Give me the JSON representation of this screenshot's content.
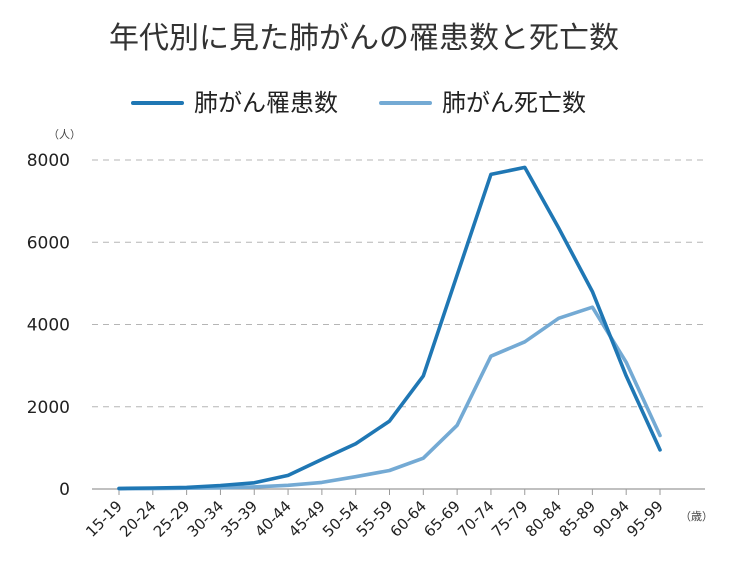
{
  "chart_data": {
    "type": "line",
    "title": "年代別に見た肺がんの罹患数と死亡数",
    "y_unit": "（人）",
    "x_unit": "（歳）",
    "categories": [
      "15-19",
      "20-24",
      "25-29",
      "30-34",
      "35-39",
      "40-44",
      "45-49",
      "50-54",
      "55-59",
      "60-64",
      "65-69",
      "70-74",
      "75-79",
      "80-84",
      "85-89",
      "90-94",
      "95-99"
    ],
    "series": [
      {
        "name": "肺がん罹患数",
        "color": "#1f77b4",
        "values": [
          15,
          25,
          40,
          85,
          150,
          330,
          720,
          1100,
          1650,
          2750,
          5200,
          7650,
          7820,
          6350,
          4800,
          2750,
          950
        ]
      },
      {
        "name": "肺がん死亡数",
        "color": "#74aad4",
        "values": [
          5,
          10,
          20,
          30,
          50,
          90,
          160,
          300,
          450,
          750,
          1550,
          3230,
          3580,
          4150,
          4420,
          3080,
          1300
        ]
      }
    ],
    "ylim": [
      0,
      8000
    ],
    "yticks": [
      0,
      2000,
      4000,
      6000,
      8000
    ],
    "grid": true,
    "legend_position": "top"
  }
}
